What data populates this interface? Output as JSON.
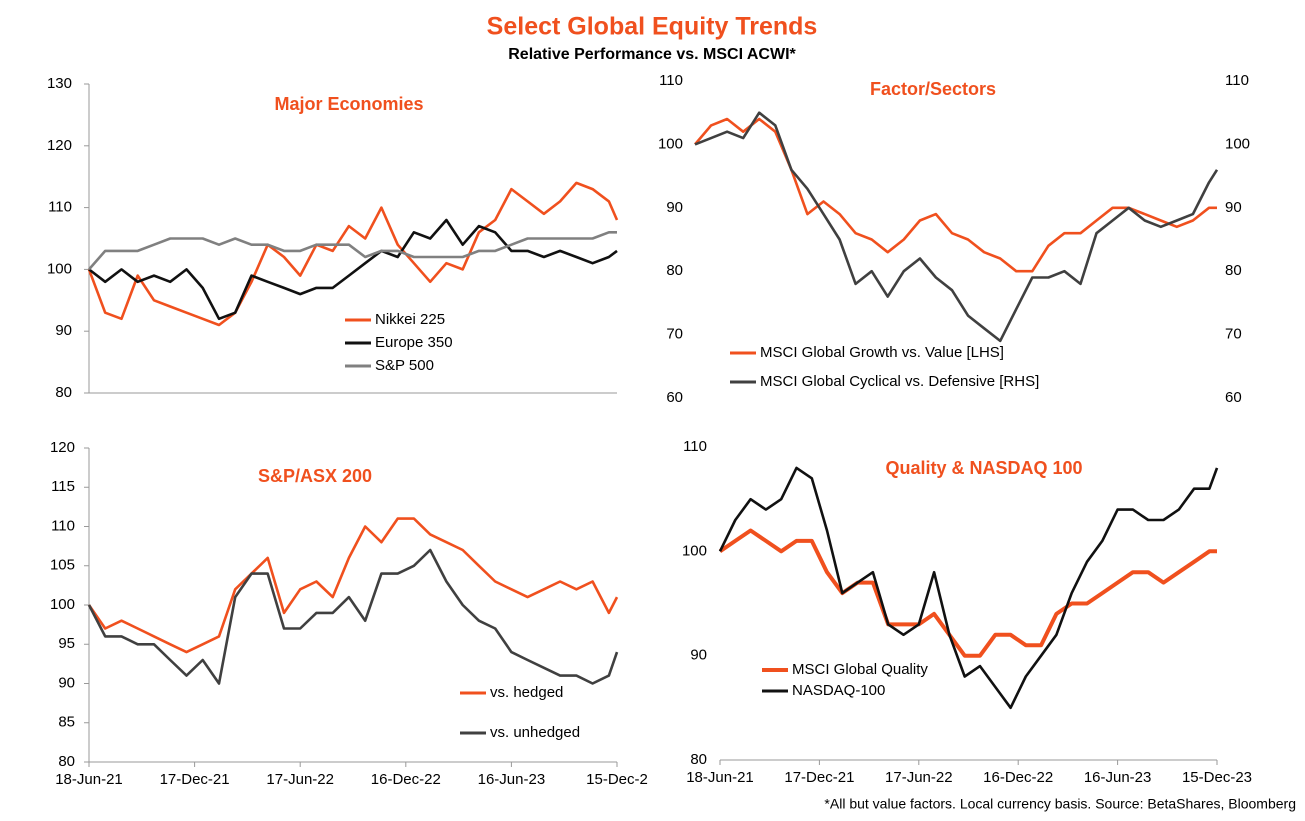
{
  "title": "Select Global Equity Trends",
  "subtitle": "Relative Performance vs. MSCI ACWI*",
  "note": "*All but value factors. Local currency basis.  Source: BetaShares, Bloomberg",
  "chart_data": [
    {
      "type": "line",
      "title": "Major Economies",
      "legend": "center",
      "x": [
        "2021-06-18",
        "2021-07-16",
        "2021-08-13",
        "2021-09-10",
        "2021-10-08",
        "2021-11-05",
        "2021-12-03",
        "2021-12-31",
        "2022-01-28",
        "2022-02-25",
        "2022-03-25",
        "2022-04-22",
        "2022-05-20",
        "2022-06-17",
        "2022-07-15",
        "2022-08-12",
        "2022-09-09",
        "2022-10-07",
        "2022-11-04",
        "2022-12-02",
        "2022-12-30",
        "2023-01-27",
        "2023-02-24",
        "2023-03-24",
        "2023-04-21",
        "2023-05-19",
        "2023-06-16",
        "2023-07-14",
        "2023-08-11",
        "2023-09-08",
        "2023-10-06",
        "2023-11-03",
        "2023-12-01",
        "2023-12-15"
      ],
      "xlim": [
        "2021-06-18",
        "2023-12-15"
      ],
      "ylim": [
        80,
        130
      ],
      "yticks": [
        80,
        90,
        100,
        110,
        120,
        130
      ],
      "series": [
        {
          "name": "Nikkei 225",
          "color": "#f0501e",
          "values": [
            100,
            93,
            92,
            99,
            95,
            94,
            93,
            92,
            91,
            93,
            98,
            104,
            102,
            99,
            104,
            103,
            107,
            105,
            110,
            104,
            101,
            98,
            101,
            100,
            106,
            108,
            113,
            111,
            109,
            111,
            114,
            113,
            111,
            108
          ]
        },
        {
          "name": "Europe 350",
          "color": "#111111",
          "values": [
            100,
            98,
            100,
            98,
            99,
            98,
            100,
            97,
            92,
            93,
            99,
            98,
            97,
            96,
            97,
            97,
            99,
            101,
            103,
            102,
            106,
            105,
            108,
            104,
            107,
            106,
            103,
            103,
            102,
            103,
            102,
            101,
            102,
            103
          ]
        },
        {
          "name": "S&P 500",
          "color": "#808080",
          "values": [
            100,
            103,
            103,
            103,
            104,
            105,
            105,
            105,
            104,
            105,
            104,
            104,
            103,
            103,
            104,
            104,
            104,
            102,
            103,
            103,
            102,
            102,
            102,
            102,
            103,
            103,
            104,
            105,
            105,
            105,
            105,
            105,
            106,
            106
          ]
        }
      ]
    },
    {
      "type": "line",
      "title": "Factor/Sectors",
      "legend": "lower left",
      "x": [
        "2021-06-18",
        "2021-07-16",
        "2021-08-13",
        "2021-09-10",
        "2021-10-08",
        "2021-11-05",
        "2021-12-03",
        "2021-12-31",
        "2022-01-28",
        "2022-02-25",
        "2022-03-25",
        "2022-04-22",
        "2022-05-20",
        "2022-06-17",
        "2022-07-15",
        "2022-08-12",
        "2022-09-09",
        "2022-10-07",
        "2022-11-04",
        "2022-12-02",
        "2022-12-30",
        "2023-01-27",
        "2023-02-24",
        "2023-03-24",
        "2023-04-21",
        "2023-05-19",
        "2023-06-16",
        "2023-07-14",
        "2023-08-11",
        "2023-09-08",
        "2023-10-06",
        "2023-11-03",
        "2023-12-01",
        "2023-12-15"
      ],
      "xlim": [
        "2021-06-18",
        "2023-12-15"
      ],
      "ylim": [
        60,
        110
      ],
      "yticks": [
        60,
        70,
        80,
        90,
        100,
        110
      ],
      "y2lim": [
        60,
        110
      ],
      "y2ticks": [
        60,
        70,
        80,
        90,
        100,
        110
      ],
      "series": [
        {
          "name": "MSCI Global Growth vs. Value [LHS]",
          "color": "#f0501e",
          "values": [
            100,
            103,
            104,
            102,
            104,
            102,
            96,
            89,
            91,
            89,
            86,
            85,
            83,
            85,
            88,
            89,
            86,
            85,
            83,
            82,
            80,
            80,
            84,
            86,
            86,
            88,
            90,
            90,
            89,
            88,
            87,
            88,
            90,
            90
          ]
        },
        {
          "name": "MSCI Global Cyclical vs. Defensive [RHS]",
          "color": "#404040",
          "axis": "y2",
          "values": [
            100,
            101,
            102,
            101,
            105,
            103,
            96,
            93,
            89,
            85,
            78,
            80,
            76,
            80,
            82,
            79,
            77,
            73,
            71,
            69,
            74,
            79,
            79,
            80,
            78,
            86,
            88,
            90,
            88,
            87,
            88,
            89,
            94,
            96
          ]
        }
      ]
    },
    {
      "type": "line",
      "title": "S&P/ASX 200",
      "legend": "lower right",
      "x": [
        "2021-06-18",
        "2021-07-16",
        "2021-08-13",
        "2021-09-10",
        "2021-10-08",
        "2021-11-05",
        "2021-12-03",
        "2021-12-31",
        "2022-01-28",
        "2022-02-25",
        "2022-03-25",
        "2022-04-22",
        "2022-05-20",
        "2022-06-17",
        "2022-07-15",
        "2022-08-12",
        "2022-09-09",
        "2022-10-07",
        "2022-11-04",
        "2022-12-02",
        "2022-12-30",
        "2023-01-27",
        "2023-02-24",
        "2023-03-24",
        "2023-04-21",
        "2023-05-19",
        "2023-06-16",
        "2023-07-14",
        "2023-08-11",
        "2023-09-08",
        "2023-10-06",
        "2023-11-03",
        "2023-12-01",
        "2023-12-15"
      ],
      "xlim": [
        "2021-06-18",
        "2023-12-15"
      ],
      "xticks": [
        {
          "value": "2021-06-18",
          "label": "18-Jun-21"
        },
        {
          "value": "2021-12-17",
          "label": "17-Dec-21"
        },
        {
          "value": "2022-06-17",
          "label": "17-Jun-22"
        },
        {
          "value": "2022-12-16",
          "label": "16-Dec-22"
        },
        {
          "value": "2023-06-16",
          "label": "16-Jun-23"
        },
        {
          "value": "2023-12-15",
          "label": "15-Dec-2"
        }
      ],
      "ylim": [
        80,
        120
      ],
      "yticks": [
        80,
        85,
        90,
        95,
        100,
        105,
        110,
        115,
        120
      ],
      "series": [
        {
          "name": "vs. hedged",
          "color": "#f0501e",
          "values": [
            100,
            97,
            98,
            97,
            96,
            95,
            94,
            95,
            96,
            102,
            104,
            106,
            99,
            102,
            103,
            101,
            106,
            110,
            108,
            111,
            111,
            109,
            108,
            107,
            105,
            103,
            102,
            101,
            102,
            103,
            102,
            103,
            99,
            101
          ]
        },
        {
          "name": "vs. unhedged",
          "color": "#404040",
          "values": [
            100,
            96,
            96,
            95,
            95,
            93,
            91,
            93,
            90,
            101,
            104,
            104,
            97,
            97,
            99,
            99,
            101,
            98,
            104,
            104,
            105,
            107,
            103,
            100,
            98,
            97,
            94,
            93,
            92,
            91,
            91,
            90,
            91,
            94
          ]
        }
      ]
    },
    {
      "type": "line",
      "title": "Quality & NASDAQ 100",
      "legend": "lower left",
      "x": [
        "2021-06-18",
        "2021-07-16",
        "2021-08-13",
        "2021-09-10",
        "2021-10-08",
        "2021-11-05",
        "2021-12-03",
        "2021-12-31",
        "2022-01-28",
        "2022-02-25",
        "2022-03-25",
        "2022-04-22",
        "2022-05-20",
        "2022-06-17",
        "2022-07-15",
        "2022-08-12",
        "2022-09-09",
        "2022-10-07",
        "2022-11-04",
        "2022-12-02",
        "2022-12-30",
        "2023-01-27",
        "2023-02-24",
        "2023-03-24",
        "2023-04-21",
        "2023-05-19",
        "2023-06-16",
        "2023-07-14",
        "2023-08-11",
        "2023-09-08",
        "2023-10-06",
        "2023-11-03",
        "2023-12-01",
        "2023-12-15"
      ],
      "xlim": [
        "2021-06-18",
        "2023-12-15"
      ],
      "xticks": [
        {
          "value": "2021-06-18",
          "label": "18-Jun-21"
        },
        {
          "value": "2021-12-17",
          "label": "17-Dec-21"
        },
        {
          "value": "2022-06-17",
          "label": "17-Jun-22"
        },
        {
          "value": "2022-12-16",
          "label": "16-Dec-22"
        },
        {
          "value": "2023-06-16",
          "label": "16-Jun-23"
        },
        {
          "value": "2023-12-15",
          "label": "15-Dec-23"
        }
      ],
      "ylim": [
        80,
        110
      ],
      "yticks": [
        80,
        90,
        100,
        110
      ],
      "series": [
        {
          "name": "MSCI Global Quality",
          "color": "#f0501e",
          "width": 4,
          "values": [
            100,
            101,
            102,
            101,
            100,
            101,
            101,
            98,
            96,
            97,
            97,
            93,
            93,
            93,
            94,
            92,
            90,
            90,
            92,
            92,
            91,
            91,
            94,
            95,
            95,
            96,
            97,
            98,
            98,
            97,
            98,
            99,
            100,
            100
          ]
        },
        {
          "name": "NASDAQ-100",
          "color": "#111111",
          "values": [
            100,
            103,
            105,
            104,
            105,
            108,
            107,
            102,
            96,
            97,
            98,
            93,
            92,
            93,
            98,
            92,
            88,
            89,
            87,
            85,
            88,
            90,
            92,
            96,
            99,
            101,
            104,
            104,
            103,
            103,
            104,
            106,
            106,
            108
          ]
        }
      ]
    }
  ]
}
